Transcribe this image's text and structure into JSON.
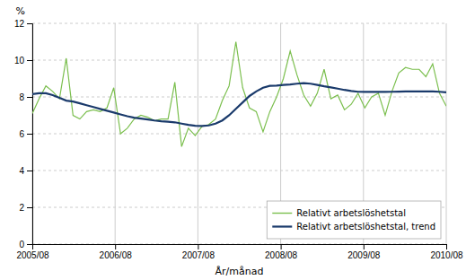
{
  "chart_data": {
    "type": "line",
    "xlabel": "År/månad",
    "ylabel": "%",
    "x": [
      0,
      0.983607,
      1.967213,
      2.95082,
      3.934426,
      4.918033,
      5.901639,
      6.885246,
      7.868852,
      8.852459,
      9.836066,
      10.819672,
      11.803279,
      12.786885,
      13.770492,
      14.754098,
      15.737705,
      16.721311,
      17.704918,
      18.688525,
      19.672131,
      20.655738,
      21.639344,
      22.622951,
      23.606557,
      24.590164,
      25.57377,
      26.557377,
      27.540984,
      28.52459,
      29.508197,
      30.491803,
      31.47541,
      32.459016,
      33.442623,
      34.42623,
      35.409836,
      36.393443,
      37.377049,
      38.360656,
      39.344262,
      40.327869,
      41.311475,
      42.295082,
      43.278689,
      44.262295,
      45.245902,
      46.229508,
      47.213115,
      48.196721,
      49.180328,
      50.163934,
      51.147541,
      52.131148,
      53.114754,
      54.098361,
      55.081967,
      56.065574,
      57.04918,
      58.032787,
      59.016393,
      60
    ],
    "series": [
      {
        "name": "Relativt arbetslöshetstal",
        "color": "#7bbf4e",
        "values": [
          7.1,
          7.9,
          8.6,
          8.3,
          7.9,
          10.1,
          7.0,
          6.8,
          7.2,
          7.3,
          7.2,
          7.4,
          8.5,
          6.0,
          6.3,
          6.8,
          7.0,
          6.9,
          6.7,
          6.8,
          6.8,
          8.8,
          5.3,
          6.3,
          5.9,
          6.4,
          6.5,
          6.8,
          7.8,
          8.6,
          11.0,
          8.5,
          7.4,
          7.2,
          6.1,
          7.2,
          8.0,
          9.0,
          10.5,
          9.2,
          8.1,
          7.5,
          8.2,
          9.5,
          7.9,
          8.1,
          7.3,
          7.6,
          8.2,
          7.4,
          8.0,
          8.2,
          7.0,
          8.3,
          9.3,
          9.6,
          9.5,
          9.5,
          9.1,
          9.8,
          8.2,
          7.5
        ]
      },
      {
        "name": "Relativt arbetslöshetstal, trend",
        "color": "#1a3a6b",
        "values": [
          8.15,
          8.2,
          8.2,
          8.1,
          7.95,
          7.8,
          7.75,
          7.65,
          7.55,
          7.45,
          7.35,
          7.25,
          7.15,
          7.05,
          6.95,
          6.87,
          6.82,
          6.77,
          6.72,
          6.68,
          6.65,
          6.62,
          6.55,
          6.48,
          6.43,
          6.42,
          6.45,
          6.55,
          6.72,
          7.0,
          7.35,
          7.7,
          8.05,
          8.3,
          8.5,
          8.6,
          8.62,
          8.65,
          8.68,
          8.72,
          8.75,
          8.72,
          8.65,
          8.58,
          8.52,
          8.45,
          8.38,
          8.32,
          8.28,
          8.27,
          8.27,
          8.27,
          8.27,
          8.28,
          8.29,
          8.3,
          8.3,
          8.3,
          8.3,
          8.3,
          8.28,
          8.25
        ]
      }
    ],
    "xlim": [
      0,
      60
    ],
    "xticks": [
      {
        "value": 0,
        "label": "2005/08"
      },
      {
        "value": 12,
        "label": "2006/08"
      },
      {
        "value": 24,
        "label": "2007/08"
      },
      {
        "value": 36,
        "label": "2008/08"
      },
      {
        "value": 48,
        "label": "2009/08"
      },
      {
        "value": 60,
        "label": "2010/08"
      }
    ],
    "ylim": [
      0,
      12
    ],
    "yticks": [
      0,
      2,
      4,
      6,
      8,
      10,
      12
    ],
    "grid": true,
    "legend": "lower right"
  }
}
